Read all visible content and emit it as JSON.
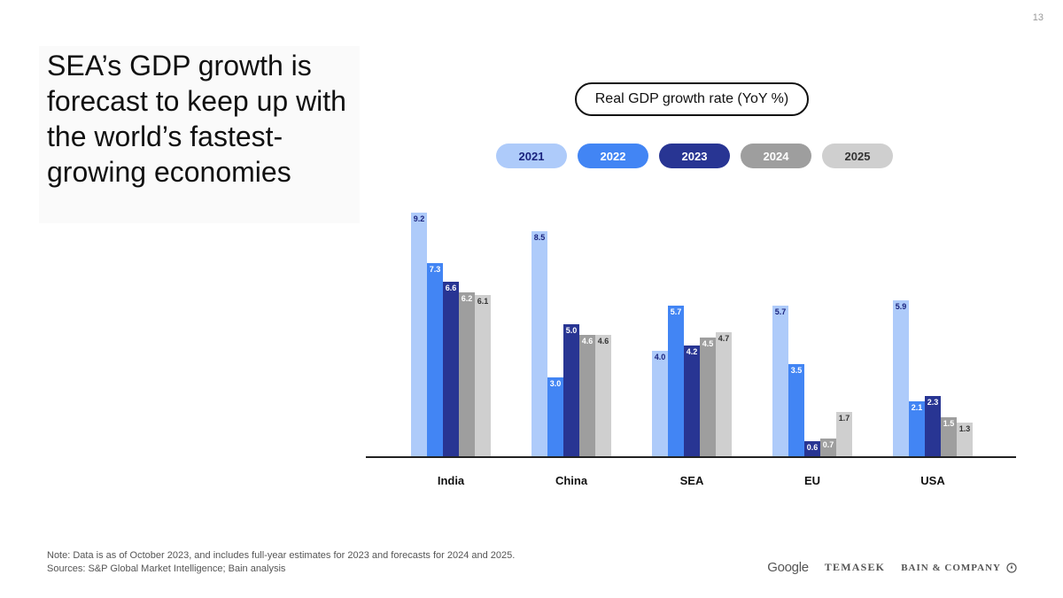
{
  "page_number": "13",
  "headline": "SEA’s GDP growth is forecast to keep up with the world’s fastest-growing economies",
  "colors": {
    "y2021": "#aecbfa",
    "y2022": "#4285f4",
    "y2023": "#283593",
    "y2024": "#9e9e9e",
    "y2025": "#cfcfcf"
  },
  "chart_data": {
    "type": "bar",
    "title": "Real GDP growth rate (YoY %)",
    "xlabel": "",
    "ylabel": "",
    "categories": [
      "India",
      "China",
      "SEA",
      "EU",
      "USA"
    ],
    "series": [
      {
        "name": "2021",
        "values": [
          "9.2",
          "8.5",
          "4.0",
          "5.7",
          "5.9"
        ]
      },
      {
        "name": "2022",
        "values": [
          "7.3",
          "3.0",
          "5.7",
          "3.5",
          "2.1"
        ]
      },
      {
        "name": "2023",
        "values": [
          "6.6",
          "5.0",
          "4.2",
          "0.6",
          "2.3"
        ]
      },
      {
        "name": "2024",
        "values": [
          "6.2",
          "4.6",
          "4.5",
          "0.7",
          "1.5"
        ]
      },
      {
        "name": "2025",
        "values": [
          "6.1",
          "4.6",
          "4.7",
          "1.7",
          "1.3"
        ]
      }
    ],
    "ylim": [
      0,
      10
    ],
    "grid": false,
    "legend_position": "top-center"
  },
  "footnote": {
    "note": "Note: Data is as of October 2023, and includes full-year estimates for 2023 and forecasts for 2024 and 2025.",
    "sources": "Sources: S&P Global Market Intelligence; Bain analysis"
  },
  "logos": {
    "google": "Google",
    "temasek": "TEMASEK",
    "bain": "BAIN & COMPANY"
  }
}
